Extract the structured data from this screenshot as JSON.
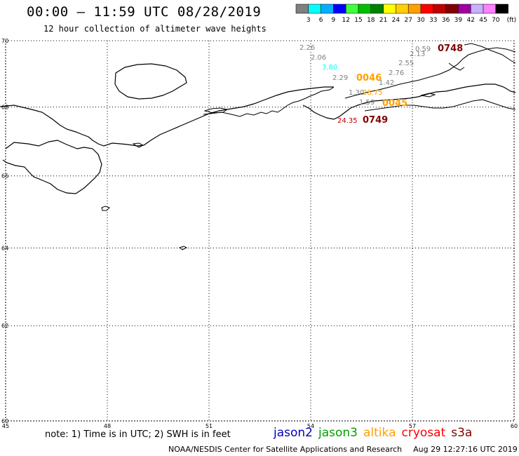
{
  "header": {
    "title": "00:00 – 11:59 UTC 08/28/2019",
    "subtitle": "12 hour collection of altimeter wave heights"
  },
  "legend": {
    "unit": "(ft)",
    "bins": [
      {
        "label": "3",
        "color": "#808080"
      },
      {
        "label": "6",
        "color": "#00ffff"
      },
      {
        "label": "9",
        "color": "#00b0ff"
      },
      {
        "label": "12",
        "color": "#0000ff"
      },
      {
        "label": "15",
        "color": "#40ff40"
      },
      {
        "label": "18",
        "color": "#00c000"
      },
      {
        "label": "21",
        "color": "#008000"
      },
      {
        "label": "24",
        "color": "#ffff00"
      },
      {
        "label": "27",
        "color": "#ffd000"
      },
      {
        "label": "30",
        "color": "#ffa000"
      },
      {
        "label": "33",
        "color": "#ff0000"
      },
      {
        "label": "36",
        "color": "#c00000"
      },
      {
        "label": "39",
        "color": "#800000"
      },
      {
        "label": "42",
        "color": "#a000a0"
      },
      {
        "label": "45",
        "color": "#c8b0ff"
      },
      {
        "label": "70",
        "color": "#ff80ff"
      },
      {
        "label": "",
        "color": "#000000"
      }
    ]
  },
  "map": {
    "lon_min": 45,
    "lon_max": 60,
    "lat_min": 60,
    "lat_max": 70,
    "lon_ticks": [
      "45",
      "48",
      "51",
      "54",
      "57",
      "60"
    ],
    "lat_ticks": [
      "70",
      "68",
      "66",
      "64",
      "62",
      "60"
    ],
    "grid": "dotted"
  },
  "observations": [
    {
      "value": "2.26",
      "color": "#808080"
    },
    {
      "value": "2.06",
      "color": "#808080"
    },
    {
      "value": "3.80",
      "color": "#00ffff"
    },
    {
      "value": "2.29",
      "color": "#808080"
    },
    {
      "value": "0046",
      "color": "#ffa000"
    },
    {
      "value": "1.42",
      "color": "#808080"
    },
    {
      "value": "2.76",
      "color": "#808080"
    },
    {
      "value": "2.55",
      "color": "#808080"
    },
    {
      "value": "2.13",
      "color": "#808080"
    },
    {
      "value": "0.59",
      "color": "#808080"
    },
    {
      "value": "0748",
      "color": "#800000"
    },
    {
      "value": "1.30",
      "color": "#808080"
    },
    {
      "value": "28.75",
      "color": "#ffa000"
    },
    {
      "value": "1.59",
      "color": "#808080"
    },
    {
      "value": "0045",
      "color": "#ffa000"
    },
    {
      "value": "24.35",
      "color": "#c00000"
    },
    {
      "value": "0749",
      "color": "#800000"
    }
  ],
  "footer": {
    "note": "note: 1) Time is in UTC; 2) SWH is in feet",
    "satellites": [
      {
        "name": "jason2",
        "color": "#0000c0"
      },
      {
        "name": "jason3",
        "color": "#00a000"
      },
      {
        "name": "altika",
        "color": "#ffa000"
      },
      {
        "name": "cryosat",
        "color": "#ff0000"
      },
      {
        "name": "s3a",
        "color": "#800000"
      }
    ],
    "credit": "NOAA/NESDIS Center for Satellite Applications and Research",
    "timestamp": "Aug 29 12:27:16 UTC 2019"
  }
}
